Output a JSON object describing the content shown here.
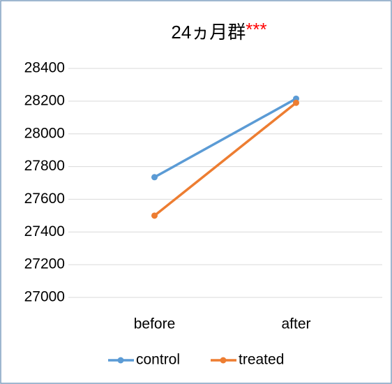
{
  "chart_data": {
    "type": "line",
    "title": "24ヵ月群",
    "annotation": "***",
    "categories": [
      "before",
      "after"
    ],
    "series": [
      {
        "name": "control",
        "color": "#5b9bd5",
        "values": [
          27735,
          28215
        ]
      },
      {
        "name": "treated",
        "color": "#ed7d31",
        "values": [
          27500,
          28190
        ]
      }
    ],
    "ylim": [
      27000,
      28400
    ],
    "yticks": [
      27000,
      27200,
      27400,
      27600,
      27800,
      28000,
      28200,
      28400
    ],
    "grid": true,
    "legend": "bottom",
    "annotation_color": "#ff0000"
  }
}
